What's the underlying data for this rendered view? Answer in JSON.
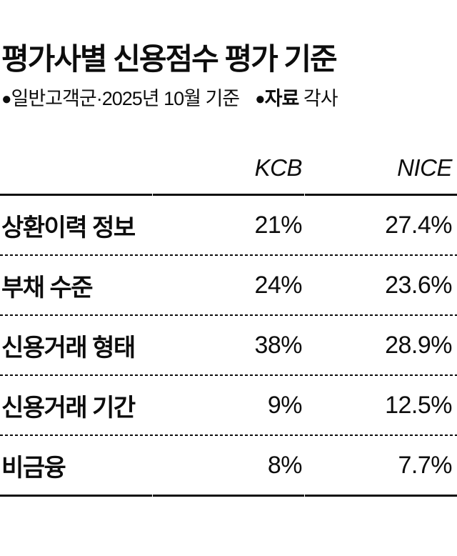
{
  "title": "평가사별 신용점수 평가 기준",
  "subtitle": {
    "bullet": "●",
    "note": "일반고객군·2025년 10월 기준",
    "source_label": "자료",
    "source_value": "각사"
  },
  "table": {
    "columns": [
      "",
      "KCB",
      "NICE"
    ],
    "rows": [
      {
        "label": "상환이력 정보",
        "kcb": "21%",
        "nice": "27.4%"
      },
      {
        "label": "부채 수준",
        "kcb": "24%",
        "nice": "23.6%"
      },
      {
        "label": "신용거래 형태",
        "kcb": "38%",
        "nice": "28.9%"
      },
      {
        "label": "신용거래 기간",
        "kcb": "9%",
        "nice": "12.5%"
      },
      {
        "label": "비금융",
        "kcb": "8%",
        "nice": "7.7%"
      }
    ]
  },
  "chart_data": {
    "type": "table",
    "title": "평가사별 신용점수 평가 기준",
    "note": "일반고객군·2025년 10월 기준",
    "source": "각사",
    "unit": "%",
    "columns": [
      "",
      "KCB",
      "NICE"
    ],
    "categories": [
      "상환이력 정보",
      "부채 수준",
      "신용거래 형태",
      "신용거래 기간",
      "비금융"
    ],
    "series": [
      {
        "name": "KCB",
        "values": [
          21,
          24,
          38,
          9,
          8
        ]
      },
      {
        "name": "NICE",
        "values": [
          27.4,
          23.6,
          28.9,
          12.5,
          7.7
        ]
      }
    ]
  },
  "colors": {
    "text": "#0d0d0d",
    "background": "#ffffff",
    "rule": "#0d0d0d"
  }
}
